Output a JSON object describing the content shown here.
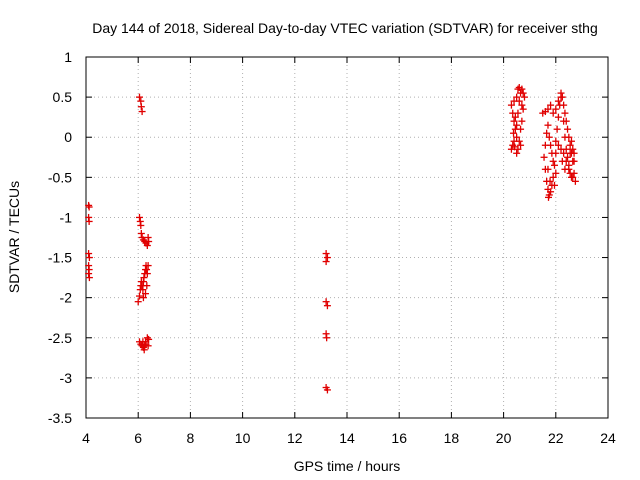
{
  "chart_data": {
    "type": "scatter",
    "title": "Day 144 of 2018, Sidereal Day-to-day VTEC variation (SDTVAR) for receiver sthg",
    "xlabel": "GPS time / hours",
    "ylabel": "SDTVAR / TECUs",
    "xlim": [
      4,
      24
    ],
    "ylim": [
      -3.5,
      1
    ],
    "x_ticks": [
      4,
      6,
      8,
      10,
      12,
      14,
      16,
      18,
      20,
      22,
      24
    ],
    "y_ticks": [
      -3.5,
      -3,
      -2.5,
      -2,
      -1.5,
      -1,
      -0.5,
      0,
      0.5,
      1
    ],
    "x_tick_labels": [
      "4",
      "6",
      "8",
      "10",
      "12",
      "14",
      "16",
      "18",
      "20",
      "22",
      "24"
    ],
    "y_tick_labels": [
      "-3.5",
      "-3",
      "-2.5",
      "-2",
      "-1.5",
      "-1",
      "-0.5",
      "0",
      "0.5",
      "1"
    ],
    "grid": true,
    "marker": "plus",
    "color": "#e00000",
    "series": [
      {
        "name": "SDTVAR",
        "points": [
          [
            4.1,
            -0.85
          ],
          [
            4.12,
            -0.87
          ],
          [
            4.1,
            -1.0
          ],
          [
            4.12,
            -1.05
          ],
          [
            4.1,
            -1.45
          ],
          [
            4.13,
            -1.5
          ],
          [
            4.1,
            -1.6
          ],
          [
            4.12,
            -1.65
          ],
          [
            4.1,
            -1.7
          ],
          [
            4.13,
            -1.75
          ],
          [
            6.05,
            0.5
          ],
          [
            6.1,
            0.45
          ],
          [
            6.12,
            0.38
          ],
          [
            6.15,
            0.32
          ],
          [
            6.05,
            -1.0
          ],
          [
            6.08,
            -1.05
          ],
          [
            6.1,
            -1.1
          ],
          [
            6.12,
            -1.2
          ],
          [
            6.15,
            -1.25
          ],
          [
            6.2,
            -1.28
          ],
          [
            6.25,
            -1.3
          ],
          [
            6.3,
            -1.32
          ],
          [
            6.35,
            -1.35
          ],
          [
            6.38,
            -1.25
          ],
          [
            6.4,
            -1.3
          ],
          [
            6.0,
            -2.05
          ],
          [
            6.05,
            -1.98
          ],
          [
            6.08,
            -1.9
          ],
          [
            6.1,
            -1.85
          ],
          [
            6.12,
            -1.8
          ],
          [
            6.15,
            -1.85
          ],
          [
            6.18,
            -1.9
          ],
          [
            6.2,
            -1.8
          ],
          [
            6.22,
            -1.75
          ],
          [
            6.25,
            -1.7
          ],
          [
            6.28,
            -1.65
          ],
          [
            6.3,
            -1.6
          ],
          [
            6.32,
            -1.65
          ],
          [
            6.35,
            -1.7
          ],
          [
            6.38,
            -1.6
          ],
          [
            6.2,
            -2.0
          ],
          [
            6.28,
            -1.95
          ],
          [
            6.33,
            -1.85
          ],
          [
            6.05,
            -2.55
          ],
          [
            6.1,
            -2.58
          ],
          [
            6.15,
            -2.6
          ],
          [
            6.18,
            -2.55
          ],
          [
            6.2,
            -2.62
          ],
          [
            6.23,
            -2.65
          ],
          [
            6.25,
            -2.6
          ],
          [
            6.28,
            -2.55
          ],
          [
            6.3,
            -2.58
          ],
          [
            6.35,
            -2.5
          ],
          [
            6.38,
            -2.6
          ],
          [
            6.4,
            -2.52
          ],
          [
            13.2,
            -1.45
          ],
          [
            13.25,
            -1.5
          ],
          [
            13.2,
            -1.55
          ],
          [
            13.2,
            -2.05
          ],
          [
            13.25,
            -2.1
          ],
          [
            13.2,
            -2.45
          ],
          [
            13.22,
            -2.5
          ],
          [
            13.2,
            -3.12
          ],
          [
            13.25,
            -3.15
          ],
          [
            20.3,
            0.4
          ],
          [
            20.35,
            0.3
          ],
          [
            20.4,
            0.2
          ],
          [
            20.45,
            0.1
          ],
          [
            20.5,
            0.0
          ],
          [
            20.35,
            -0.1
          ],
          [
            20.3,
            -0.15
          ],
          [
            20.4,
            -0.05
          ],
          [
            20.5,
            0.15
          ],
          [
            20.55,
            0.3
          ],
          [
            20.6,
            0.45
          ],
          [
            20.65,
            0.55
          ],
          [
            20.7,
            0.6
          ],
          [
            20.75,
            0.55
          ],
          [
            20.8,
            0.5
          ],
          [
            20.75,
            0.35
          ],
          [
            20.7,
            0.2
          ],
          [
            20.65,
            0.1
          ],
          [
            20.6,
            -0.05
          ],
          [
            20.55,
            -0.15
          ],
          [
            20.5,
            -0.2
          ],
          [
            20.45,
            0.25
          ],
          [
            20.4,
            0.45
          ],
          [
            20.5,
            0.5
          ],
          [
            20.55,
            0.6
          ],
          [
            20.6,
            0.62
          ],
          [
            20.7,
            0.4
          ],
          [
            20.65,
            -0.1
          ],
          [
            20.42,
            -0.12
          ],
          [
            20.38,
            0.05
          ],
          [
            21.5,
            0.3
          ],
          [
            21.6,
            0.32
          ],
          [
            21.7,
            0.35
          ],
          [
            21.8,
            0.4
          ],
          [
            21.9,
            0.3
          ],
          [
            22.0,
            0.35
          ],
          [
            22.1,
            0.45
          ],
          [
            22.2,
            0.55
          ],
          [
            22.25,
            0.5
          ],
          [
            22.3,
            0.4
          ],
          [
            22.35,
            0.3
          ],
          [
            22.4,
            0.2
          ],
          [
            22.45,
            0.1
          ],
          [
            22.5,
            0.0
          ],
          [
            22.55,
            -0.1
          ],
          [
            22.6,
            -0.2
          ],
          [
            22.65,
            -0.3
          ],
          [
            22.7,
            -0.45
          ],
          [
            22.75,
            -0.55
          ],
          [
            22.65,
            -0.5
          ],
          [
            22.55,
            -0.45
          ],
          [
            22.5,
            -0.35
          ],
          [
            22.4,
            -0.3
          ],
          [
            22.3,
            -0.2
          ],
          [
            22.2,
            -0.15
          ],
          [
            22.1,
            -0.1
          ],
          [
            22.0,
            -0.2
          ],
          [
            21.95,
            -0.35
          ],
          [
            21.9,
            -0.5
          ],
          [
            21.85,
            -0.6
          ],
          [
            21.8,
            -0.68
          ],
          [
            21.75,
            -0.72
          ],
          [
            21.7,
            -0.65
          ],
          [
            21.65,
            -0.55
          ],
          [
            21.6,
            -0.4
          ],
          [
            21.55,
            -0.25
          ],
          [
            21.6,
            -0.1
          ],
          [
            21.65,
            0.05
          ],
          [
            21.7,
            0.15
          ],
          [
            21.75,
            0.0
          ],
          [
            21.8,
            -0.1
          ],
          [
            21.85,
            -0.2
          ],
          [
            21.9,
            -0.3
          ],
          [
            22.0,
            -0.05
          ],
          [
            22.05,
            0.1
          ],
          [
            22.1,
            0.25
          ],
          [
            22.15,
            0.4
          ],
          [
            22.2,
            0.5
          ],
          [
            22.3,
            0.2
          ],
          [
            22.35,
            0.0
          ],
          [
            22.4,
            -0.15
          ],
          [
            22.45,
            -0.25
          ],
          [
            22.5,
            -0.4
          ],
          [
            22.6,
            -0.5
          ],
          [
            22.7,
            -0.3
          ],
          [
            22.65,
            -0.15
          ],
          [
            22.6,
            -0.05
          ],
          [
            22.0,
            -0.45
          ],
          [
            21.95,
            -0.6
          ],
          [
            21.7,
            -0.4
          ],
          [
            21.72,
            -0.75
          ],
          [
            21.78,
            -0.55
          ],
          [
            22.25,
            -0.3
          ],
          [
            22.35,
            -0.4
          ],
          [
            22.55,
            -0.2
          ],
          [
            22.7,
            -0.2
          ]
        ]
      }
    ]
  }
}
